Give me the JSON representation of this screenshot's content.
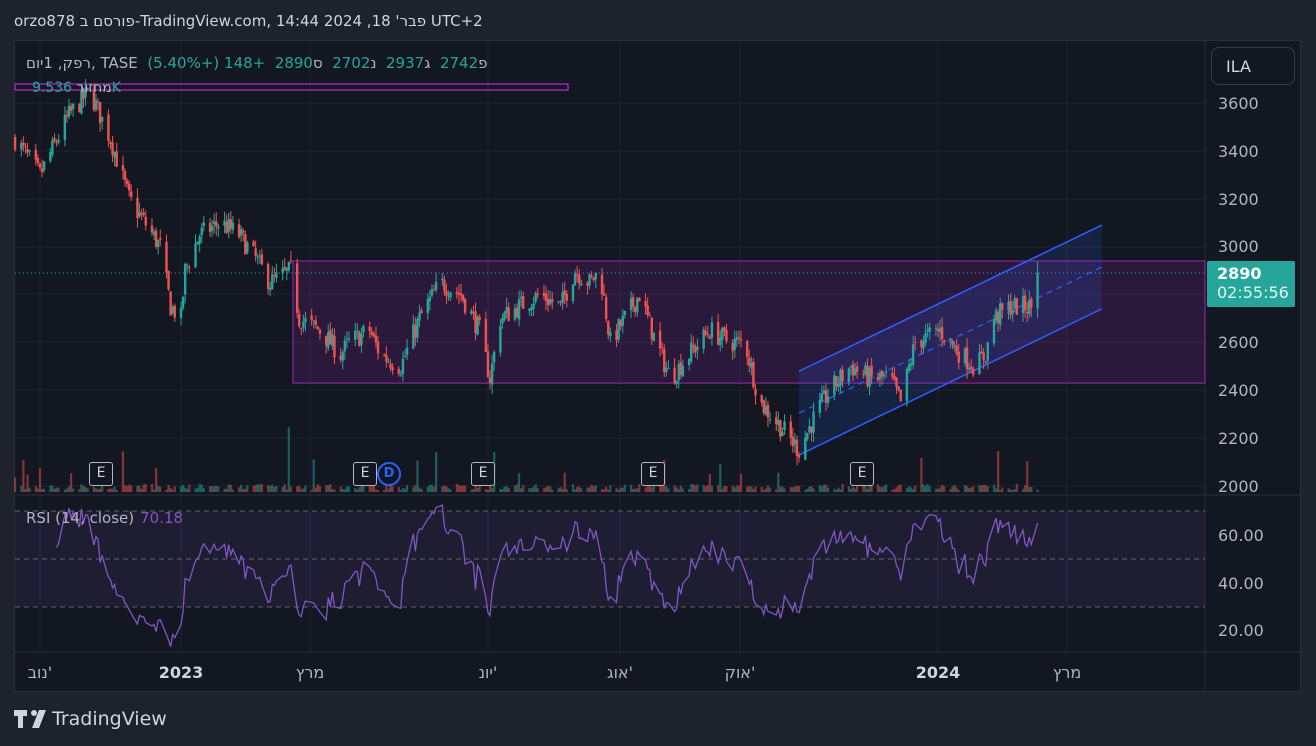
{
  "header": {
    "title": "orzo878 פורסם ב-TradingView.com, 14:44 2024 ,18 'פבר UTC+2"
  },
  "legend": {
    "symbol": "רפק, 1יום, TASE",
    "open_label": "פ",
    "open": "2742",
    "high_label": "ג",
    "high": "2937",
    "low_label": "נ",
    "low": "2702",
    "close_label": "ס",
    "close": "2890",
    "change": "+148 (+5.40%)",
    "volume_label": "מחזור",
    "volume": "9.536K"
  },
  "currency": "ILA",
  "price_axis": [
    "3600",
    "3400",
    "3200",
    "3000",
    "2600",
    "2400",
    "2200",
    "2000"
  ],
  "last_price": {
    "value": "2890",
    "countdown": "02:55:56"
  },
  "rsi": {
    "label": "RSI (14, close)",
    "value": "70.18",
    "axis": [
      "60.00",
      "40.00",
      "20.00"
    ]
  },
  "time_axis": [
    {
      "label": "נוב'",
      "bold": false
    },
    {
      "label": "2023",
      "bold": true
    },
    {
      "label": "מרץ",
      "bold": false
    },
    {
      "label": "יונ'",
      "bold": false
    },
    {
      "label": "אוג'",
      "bold": false
    },
    {
      "label": "אוק'",
      "bold": false
    },
    {
      "label": "2024",
      "bold": true
    },
    {
      "label": "מרץ",
      "bold": false
    }
  ],
  "events": [
    "E",
    "E",
    "D",
    "E",
    "E",
    "E"
  ],
  "branding": "TradingView",
  "colors": {
    "up": "#26a69a",
    "down": "#ef5350",
    "rsi": "#7e57c2",
    "box": "#9c27b0",
    "channel": "#2962ff"
  },
  "chart_data": {
    "type": "candlestick",
    "title": "רפק, 1יום, TASE",
    "ylim": [
      2000,
      3700
    ],
    "last_candle": {
      "open": 2742,
      "high": 2937,
      "low": 2702,
      "close": 2890
    },
    "range_box": {
      "top": 2940,
      "bottom": 2430,
      "start": "2023-02-24"
    },
    "close_keypoints": [
      [
        "2022-10-13",
        3450
      ],
      [
        "2022-10-25",
        3300
      ],
      [
        "2022-11-08",
        3550
      ],
      [
        "2022-11-18",
        3650
      ],
      [
        "2022-11-28",
        3450
      ],
      [
        "2022-12-07",
        3200
      ],
      [
        "2022-12-22",
        3000
      ],
      [
        "2022-12-27",
        2750
      ],
      [
        "2023-01-01",
        2700
      ],
      [
        "2023-01-03",
        2900
      ],
      [
        "2023-01-10",
        3050
      ],
      [
        "2023-01-20",
        3100
      ],
      [
        "2023-01-29",
        3050
      ],
      [
        "2023-02-06",
        2950
      ],
      [
        "2023-02-13",
        2850
      ],
      [
        "2023-02-23",
        2900
      ],
      [
        "2023-02-27",
        2700
      ],
      [
        "2023-03-09",
        2650
      ],
      [
        "2023-03-19",
        2550
      ],
      [
        "2023-03-23",
        2600
      ],
      [
        "2023-04-02",
        2650
      ],
      [
        "2023-04-07",
        2550
      ],
      [
        "2023-04-17",
        2500
      ],
      [
        "2023-04-26",
        2700
      ],
      [
        "2023-05-06",
        2850
      ],
      [
        "2023-05-16",
        2800
      ],
      [
        "2023-05-25",
        2650
      ],
      [
        "2023-05-30",
        2450
      ],
      [
        "2023-06-04",
        2700
      ],
      [
        "2023-06-13",
        2750
      ],
      [
        "2023-06-23",
        2800
      ],
      [
        "2023-07-03",
        2750
      ],
      [
        "2023-07-10",
        2900
      ],
      [
        "2023-07-17",
        2850
      ],
      [
        "2023-07-22",
        2900
      ],
      [
        "2023-07-27",
        2600
      ],
      [
        "2023-08-03",
        2700
      ],
      [
        "2023-08-10",
        2800
      ],
      [
        "2023-08-18",
        2600
      ],
      [
        "2023-08-25",
        2450
      ],
      [
        "2023-09-03",
        2550
      ],
      [
        "2023-09-13",
        2650
      ],
      [
        "2023-09-23",
        2600
      ],
      [
        "2023-09-30",
        2600
      ],
      [
        "2023-10-07",
        2350
      ],
      [
        "2023-10-17",
        2250
      ],
      [
        "2023-10-26",
        2150
      ],
      [
        "2023-11-03",
        2300
      ],
      [
        "2023-11-10",
        2400
      ],
      [
        "2023-11-20",
        2500
      ],
      [
        "2023-11-29",
        2450
      ],
      [
        "2023-12-09",
        2450
      ],
      [
        "2023-12-14",
        2350
      ],
      [
        "2023-12-21",
        2600
      ],
      [
        "2024-01-02",
        2650
      ],
      [
        "2024-01-12",
        2550
      ],
      [
        "2024-01-19",
        2500
      ],
      [
        "2024-01-24",
        2550
      ],
      [
        "2024-01-28",
        2700
      ],
      [
        "2024-02-05",
        2750
      ],
      [
        "2024-02-14",
        2750
      ],
      [
        "2024-02-17",
        2742
      ],
      [
        "2024-02-18",
        2890
      ]
    ],
    "channel": {
      "upper": [
        [
          "2023-10-26",
          2480
        ],
        [
          "2024-03-20",
          3090
        ]
      ],
      "lower": [
        [
          "2023-10-26",
          2130
        ],
        [
          "2024-03-20",
          2740
        ]
      ]
    }
  }
}
